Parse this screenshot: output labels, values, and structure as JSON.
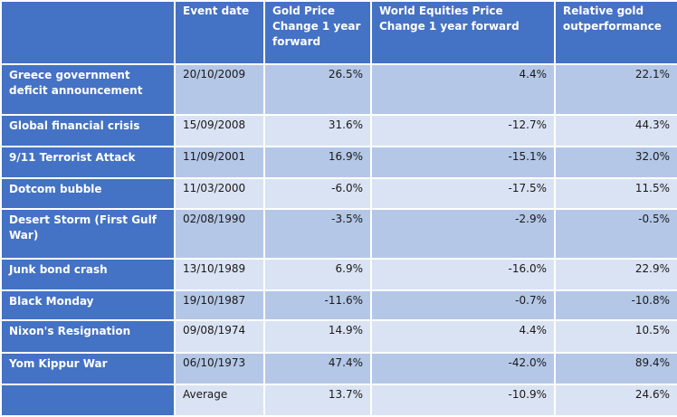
{
  "columns": {
    "event": "",
    "date": "Event date",
    "gold": "Gold Price Change 1 year forward",
    "equities": "World Equities Price Change 1 year forward",
    "relative": "Relative gold outperformance"
  },
  "rows": [
    {
      "event": "Greece government deficit announcement",
      "date": "20/10/2009",
      "gold": "26.5%",
      "equities": "4.4%",
      "relative": "22.1%"
    },
    {
      "event": "Global financial crisis",
      "date": "15/09/2008",
      "gold": "31.6%",
      "equities": "-12.7%",
      "relative": "44.3%"
    },
    {
      "event": "9/11 Terrorist Attack",
      "date": "11/09/2001",
      "gold": "16.9%",
      "equities": "-15.1%",
      "relative": "32.0%"
    },
    {
      "event": "Dotcom bubble",
      "date": "11/03/2000",
      "gold": "-6.0%",
      "equities": "-17.5%",
      "relative": "11.5%"
    },
    {
      "event": "Desert Storm (First Gulf War)",
      "date": "02/08/1990",
      "gold": "-3.5%",
      "equities": "-2.9%",
      "relative": "-0.5%"
    },
    {
      "event": "Junk bond crash",
      "date": "13/10/1989",
      "gold": "6.9%",
      "equities": "-16.0%",
      "relative": "22.9%"
    },
    {
      "event": "Black Monday",
      "date": "19/10/1987",
      "gold": "-11.6%",
      "equities": "-0.7%",
      "relative": "-10.8%"
    },
    {
      "event": "Nixon's Resignation",
      "date": "09/08/1974",
      "gold": "14.9%",
      "equities": "4.4%",
      "relative": "10.5%"
    },
    {
      "event": "Yom Kippur War",
      "date": "06/10/1973",
      "gold": "47.4%",
      "equities": "-42.0%",
      "relative": "89.4%"
    }
  ],
  "average": {
    "event": "",
    "date": "Average",
    "gold": "13.7%",
    "equities": "-10.9%",
    "relative": "24.6%"
  },
  "colors": {
    "header": "#4472c4",
    "row_dark": "#b4c7e7",
    "row_light": "#dae3f3"
  }
}
